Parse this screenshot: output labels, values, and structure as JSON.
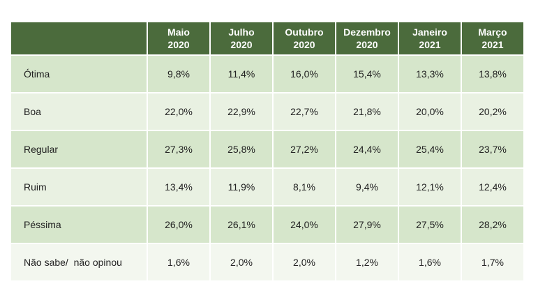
{
  "table": {
    "header": [
      [
        "Maio",
        "2020"
      ],
      [
        "Julho",
        "2020"
      ],
      [
        "Outubro",
        "2020"
      ],
      [
        "Dezembro",
        "2020"
      ],
      [
        "Janeiro",
        "2021"
      ],
      [
        "Março",
        "2021"
      ]
    ],
    "rows": [
      [
        "Ótima",
        "9,8%",
        "11,4%",
        "16,0%",
        "15,4%",
        "13,3%",
        "13,8%"
      ],
      [
        "Boa",
        "22,0%",
        "22,9%",
        "22,7%",
        "21,8%",
        "20,0%",
        "20,2%"
      ],
      [
        "Regular",
        "27,3%",
        "25,8%",
        "27,2%",
        "24,4%",
        "25,4%",
        "23,7%"
      ],
      [
        "Ruim",
        "13,4%",
        "11,9%",
        "8,1%",
        "9,4%",
        "12,1%",
        "12,4%"
      ],
      [
        "Péssima",
        "26,0%",
        "26,1%",
        "24,0%",
        "27,9%",
        "27,5%",
        "28,2%"
      ],
      [
        "Não sabe/  não opinou",
        "1,6%",
        "2,0%",
        "2,0%",
        "1,2%",
        "1,6%",
        "1,7%"
      ]
    ]
  }
}
